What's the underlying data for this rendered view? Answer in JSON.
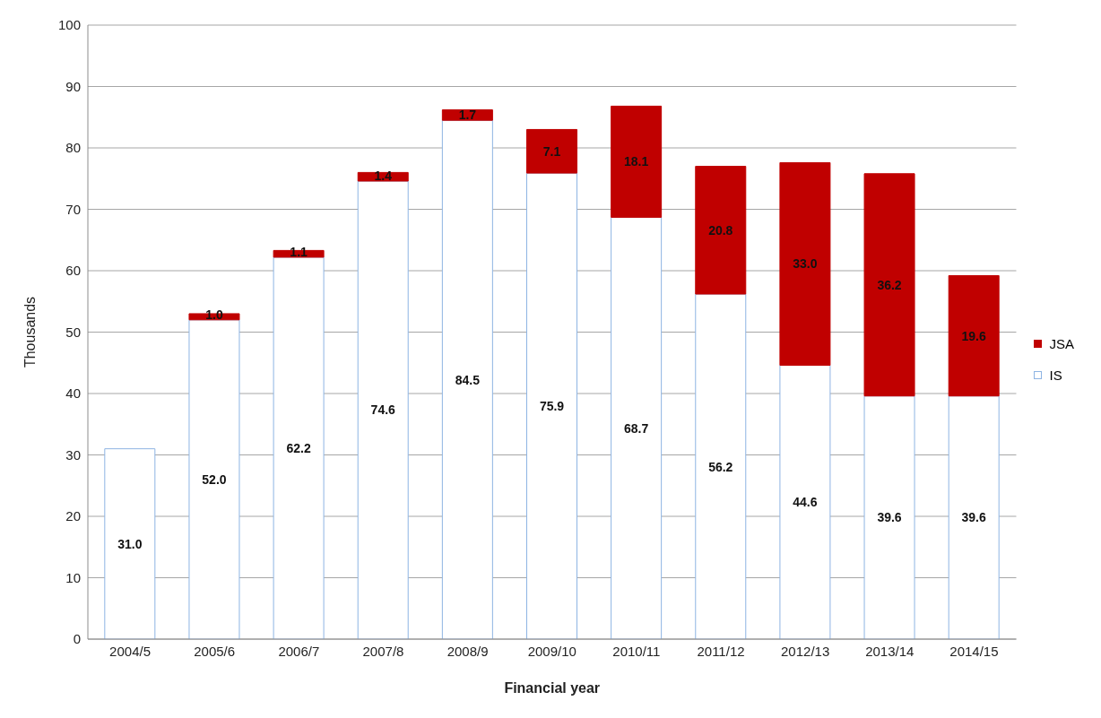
{
  "chart_data": {
    "type": "bar",
    "stacked": true,
    "xlabel": "Financial year",
    "ylabel": "Thousands",
    "categories": [
      "2004/5",
      "2005/6",
      "2006/7",
      "2007/8",
      "2008/9",
      "2009/10",
      "2010/11",
      "2011/12",
      "2012/13",
      "2013/14",
      "2014/15"
    ],
    "series": [
      {
        "name": "IS",
        "color": "#8eb4e3",
        "values": [
          31.0,
          52.0,
          62.2,
          74.6,
          84.5,
          75.9,
          68.7,
          56.2,
          44.6,
          39.6,
          39.6
        ],
        "value_labels": [
          "31.0",
          "52.0",
          "62.2",
          "74.6",
          "84.5",
          "75.9",
          "68.7",
          "56.2",
          "44.6",
          "39.6",
          "39.6"
        ]
      },
      {
        "name": "JSA",
        "color": "#c00000",
        "values": [
          null,
          1.0,
          1.1,
          1.4,
          1.7,
          7.1,
          18.1,
          20.8,
          33.0,
          36.2,
          19.6
        ],
        "value_labels": [
          null,
          "1.0",
          "1.1",
          "1.4",
          "1.7",
          "7.1",
          "18.1",
          "20.8",
          "33.0",
          "36.2",
          "19.6"
        ]
      }
    ],
    "ylim": [
      0,
      100
    ],
    "yticks": [
      0,
      10,
      20,
      30,
      40,
      50,
      60,
      70,
      80,
      90,
      100
    ],
    "grid": "y",
    "legend": "right"
  }
}
